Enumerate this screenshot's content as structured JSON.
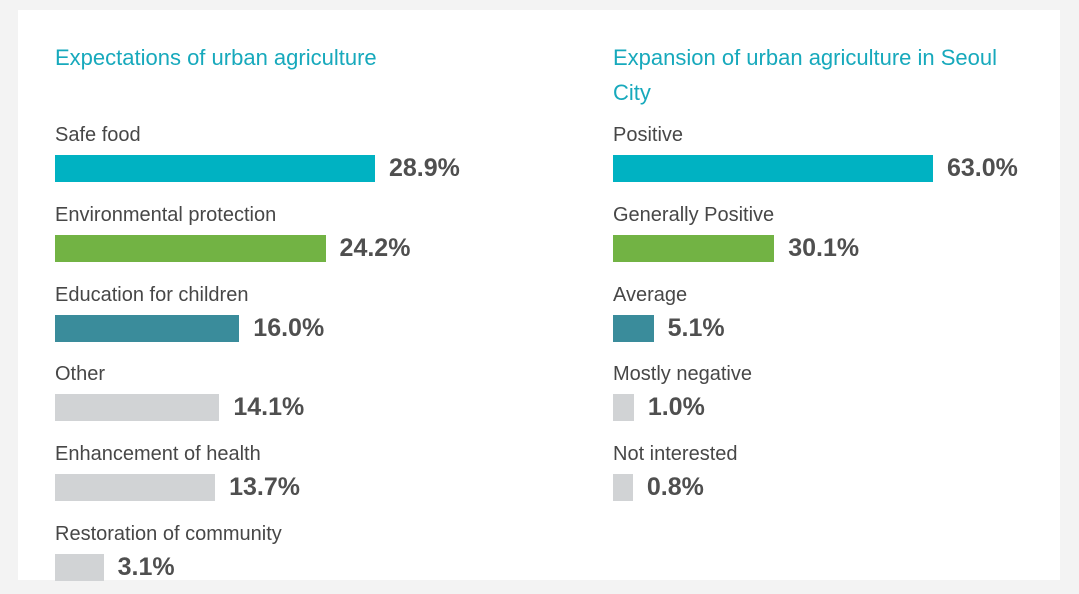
{
  "chart_data": [
    {
      "type": "bar",
      "title": "Expectations of urban agriculture",
      "categories": [
        "Safe food",
        "Environmental protection",
        "Education for children",
        "Other",
        "Enhancement of health",
        "Restoration of community"
      ],
      "values": [
        28.9,
        24.2,
        16.0,
        14.1,
        13.7,
        3.1
      ],
      "value_labels": [
        "28.9%",
        "24.2%",
        "16.0%",
        "14.1%",
        "13.7%",
        "3.1%"
      ],
      "colors": [
        "#00b2c2",
        "#72b344",
        "#3a8c9b",
        "#d1d3d5",
        "#d1d3d5",
        "#d1d3d5"
      ]
    },
    {
      "type": "bar",
      "title": "Expansion of urban agriculture in Seoul City",
      "categories": [
        "Positive",
        "Generally Positive",
        "Average",
        "Mostly negative",
        "Not interested"
      ],
      "values": [
        63.0,
        30.1,
        5.1,
        1.0,
        0.8
      ],
      "value_labels": [
        "63.0%",
        "30.1%",
        "5.1%",
        "1.0%",
        "0.8%"
      ],
      "colors": [
        "#00b2c2",
        "#72b344",
        "#3a8c9b",
        "#d1d3d5",
        "#d1d3d5"
      ]
    }
  ]
}
